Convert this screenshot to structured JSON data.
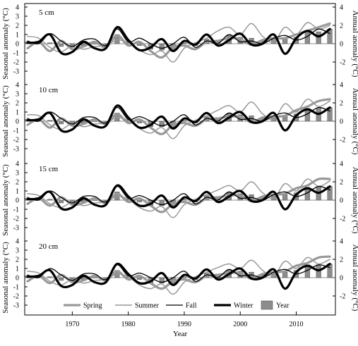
{
  "chart_data": [
    {
      "type": "line",
      "panel_label": "5 cm",
      "ylabel_left": "Seasonal anomaly (°C)",
      "ylabel_right": "Annual anomaly (°C)",
      "ylim_left": [
        -4,
        4
      ],
      "ylim_right": [
        -4,
        4
      ],
      "left_ticks": [
        "4",
        "3",
        "2",
        "1",
        "0",
        "-1",
        "-2",
        "-3"
      ],
      "right_ticks": [
        "4",
        "2",
        "0",
        "-2"
      ],
      "x": [
        1962,
        1964,
        1966,
        1968,
        1970,
        1972,
        1974,
        1976,
        1978,
        1980,
        1982,
        1984,
        1986,
        1988,
        1990,
        1992,
        1994,
        1996,
        1998,
        2000,
        2002,
        2004,
        2006,
        2008,
        2010,
        2012,
        2014,
        2016
      ],
      "series": [
        {
          "name": "Spring",
          "style": "thick-gray",
          "values": [
            -0.5,
            0.2,
            -0.8,
            0.3,
            -0.6,
            -0.3,
            0.2,
            -0.4,
            0.9,
            -0.2,
            0.2,
            -0.8,
            -1.5,
            -0.4,
            -0.2,
            -0.6,
            0.2,
            0.3,
            0.6,
            0.5,
            -0.1,
            0.4,
            0.6,
            0.6,
            1.0,
            1.4,
            1.8,
            2.2
          ]
        },
        {
          "name": "Summer",
          "style": "thin-gray",
          "values": [
            0.8,
            0.6,
            -0.4,
            -0.9,
            -0.2,
            -0.6,
            -0.3,
            -0.2,
            0.4,
            0.1,
            -0.7,
            -1.2,
            -0.8,
            -2.0,
            -0.5,
            0.1,
            0.6,
            1.4,
            1.8,
            1.0,
            2.2,
            0.8,
            0.2,
            1.8,
            1.0,
            2.3,
            1.6,
            2.0
          ]
        },
        {
          "name": "Fall",
          "style": "thin-black",
          "values": [
            0.3,
            0.0,
            1.1,
            0.3,
            -0.3,
            0.4,
            0.5,
            -0.2,
            1.6,
            0.2,
            0.6,
            0.0,
            -0.5,
            0.0,
            0.7,
            -0.4,
            0.3,
            0.0,
            1.0,
            0.2,
            0.3,
            0.0,
            0.6,
            0.9,
            0.4,
            0.8,
            1.6,
            1.1
          ]
        },
        {
          "name": "Winter",
          "style": "thick-black",
          "values": [
            0.1,
            0.2,
            1.0,
            -1.0,
            -0.9,
            0.2,
            -0.5,
            -0.5,
            1.8,
            0.4,
            -0.7,
            -0.4,
            0.5,
            -0.8,
            0.3,
            -0.1,
            1.0,
            -0.2,
            0.4,
            1.1,
            -0.1,
            0.0,
            1.0,
            -1.1,
            0.6,
            1.4,
            0.8,
            1.6
          ]
        }
      ],
      "year_bars": {
        "name": "Year",
        "values": [
          0.2,
          0.1,
          0.1,
          -0.3,
          -0.4,
          -0.2,
          0.0,
          -0.2,
          1.0,
          0.1,
          -0.2,
          -0.6,
          -0.7,
          -0.8,
          0.1,
          -0.2,
          0.5,
          0.4,
          0.9,
          0.7,
          0.6,
          0.3,
          0.6,
          0.6,
          0.7,
          1.4,
          1.3,
          1.6
        ]
      }
    },
    {
      "type": "line",
      "panel_label": "10 cm",
      "ylabel_left": "Seasonal anomaly (°C)",
      "ylabel_right": "Annual anomaly (°C)",
      "ylim_left": [
        -4,
        4
      ],
      "ylim_right": [
        -4,
        4
      ],
      "left_ticks": [
        "4",
        "3",
        "2",
        "1",
        "0",
        "-1",
        "-2",
        "-3"
      ],
      "right_ticks": [
        "4",
        "2",
        "0",
        "-2"
      ],
      "x": [
        1962,
        1964,
        1966,
        1968,
        1970,
        1972,
        1974,
        1976,
        1978,
        1980,
        1982,
        1984,
        1986,
        1988,
        1990,
        1992,
        1994,
        1996,
        1998,
        2000,
        2002,
        2004,
        2006,
        2008,
        2010,
        2012,
        2014,
        2016
      ],
      "series": [
        {
          "name": "Spring",
          "style": "thick-gray",
          "values": [
            -0.4,
            0.2,
            -0.7,
            0.3,
            -0.5,
            -0.3,
            0.2,
            -0.3,
            0.8,
            -0.2,
            0.2,
            -0.7,
            -1.4,
            -0.4,
            -0.2,
            -0.5,
            0.2,
            0.3,
            0.5,
            0.5,
            -0.1,
            0.4,
            0.5,
            0.6,
            1.2,
            1.6,
            2.2,
            2.4
          ]
        },
        {
          "name": "Summer",
          "style": "thin-gray",
          "values": [
            0.7,
            0.6,
            -0.4,
            -0.9,
            -0.2,
            -0.6,
            -0.3,
            -0.2,
            0.4,
            0.1,
            -0.8,
            -1.3,
            -0.7,
            -1.9,
            -0.5,
            0.1,
            0.6,
            1.2,
            1.7,
            1.0,
            2.1,
            0.8,
            0.2,
            1.9,
            1.0,
            2.4,
            1.6,
            2.2
          ]
        },
        {
          "name": "Fall",
          "style": "thin-black",
          "values": [
            0.3,
            0.0,
            1.0,
            0.3,
            -0.3,
            0.4,
            0.4,
            -0.2,
            1.5,
            0.2,
            0.5,
            0.0,
            -0.5,
            0.0,
            0.7,
            -0.4,
            0.3,
            0.0,
            0.9,
            0.2,
            0.3,
            0.0,
            0.6,
            0.9,
            0.4,
            0.8,
            1.5,
            1.1
          ]
        },
        {
          "name": "Winter",
          "style": "thick-black",
          "values": [
            0.1,
            0.2,
            0.9,
            -1.0,
            -0.9,
            0.2,
            -0.5,
            -0.5,
            1.7,
            0.4,
            -0.7,
            -0.4,
            0.5,
            -0.8,
            0.3,
            -0.1,
            0.9,
            -0.2,
            0.4,
            1.0,
            -0.1,
            0.0,
            0.9,
            -1.0,
            0.6,
            1.3,
            0.8,
            1.5
          ]
        }
      ],
      "year_bars": {
        "name": "Year",
        "values": [
          0.2,
          0.1,
          0.1,
          -0.3,
          -0.4,
          -0.2,
          0.0,
          -0.2,
          0.9,
          0.1,
          -0.2,
          -0.6,
          -0.6,
          -0.8,
          0.1,
          -0.2,
          0.5,
          0.4,
          0.8,
          0.7,
          0.6,
          0.3,
          0.6,
          0.6,
          0.8,
          1.4,
          1.4,
          1.5
        ]
      }
    },
    {
      "type": "line",
      "panel_label": "15 cm",
      "ylabel_left": "Seasonal anomaly (°C)",
      "ylabel_right": "Annual anomaly (°C)",
      "ylim_left": [
        -4,
        4
      ],
      "ylim_right": [
        -4,
        4
      ],
      "left_ticks": [
        "4",
        "3",
        "2",
        "1",
        "0",
        "-1",
        "-2",
        "-3"
      ],
      "right_ticks": [
        "4",
        "2",
        "0",
        "-2"
      ],
      "x": [
        1962,
        1964,
        1966,
        1968,
        1970,
        1972,
        1974,
        1976,
        1978,
        1980,
        1982,
        1984,
        1986,
        1988,
        1990,
        1992,
        1994,
        1996,
        1998,
        2000,
        2002,
        2004,
        2006,
        2008,
        2010,
        2012,
        2014,
        2016
      ],
      "series": [
        {
          "name": "Spring",
          "style": "thick-gray",
          "values": [
            -0.4,
            0.2,
            -0.6,
            0.3,
            -0.5,
            -0.3,
            0.2,
            -0.3,
            0.7,
            -0.2,
            0.2,
            -0.6,
            -1.3,
            -0.4,
            -0.2,
            -0.5,
            0.2,
            0.3,
            0.5,
            0.5,
            -0.1,
            0.4,
            0.6,
            0.7,
            1.3,
            1.6,
            2.3,
            2.3
          ]
        },
        {
          "name": "Summer",
          "style": "thin-gray",
          "values": [
            0.7,
            0.5,
            -0.4,
            -0.8,
            -0.2,
            -0.6,
            -0.3,
            -0.2,
            0.4,
            0.1,
            -0.8,
            -1.2,
            -0.7,
            -1.9,
            -0.5,
            0.1,
            0.6,
            1.1,
            1.6,
            1.0,
            2.0,
            0.8,
            0.2,
            1.8,
            1.0,
            2.3,
            1.5,
            2.1
          ]
        },
        {
          "name": "Fall",
          "style": "thin-black",
          "values": [
            0.3,
            0.0,
            1.0,
            0.3,
            -0.3,
            0.4,
            0.4,
            -0.2,
            1.5,
            0.2,
            0.5,
            0.0,
            -0.5,
            0.0,
            0.7,
            -0.4,
            0.3,
            0.0,
            0.9,
            0.2,
            0.3,
            0.0,
            0.6,
            0.9,
            0.4,
            0.8,
            1.5,
            1.1
          ]
        },
        {
          "name": "Winter",
          "style": "thick-black",
          "values": [
            0.1,
            0.2,
            0.9,
            -0.9,
            -0.8,
            0.2,
            -0.5,
            -0.5,
            1.6,
            0.4,
            -0.6,
            -0.4,
            0.5,
            -0.8,
            0.3,
            -0.1,
            0.9,
            -0.2,
            0.4,
            1.0,
            -0.1,
            0.0,
            0.9,
            -1.0,
            0.6,
            1.3,
            0.8,
            1.5
          ]
        }
      ],
      "year_bars": {
        "name": "Year",
        "values": [
          0.2,
          0.1,
          0.1,
          -0.3,
          -0.4,
          -0.2,
          0.0,
          -0.2,
          0.9,
          0.1,
          -0.2,
          -0.6,
          -0.6,
          -0.8,
          0.1,
          -0.2,
          0.5,
          0.4,
          0.8,
          0.7,
          0.6,
          0.3,
          0.6,
          0.6,
          0.8,
          1.4,
          1.4,
          1.5
        ]
      }
    },
    {
      "type": "line",
      "panel_label": "20 cm",
      "ylabel_left": "Seasonal anomaly (°C)",
      "ylabel_right": "Annual anomaly (°C)",
      "ylim_left": [
        -4,
        4
      ],
      "ylim_right": [
        -4,
        4
      ],
      "left_ticks": [
        "4",
        "3",
        "2",
        "1",
        "0",
        "-1",
        "-2",
        "-3"
      ],
      "right_ticks": [
        "4",
        "2",
        "0",
        "-2"
      ],
      "x": [
        1962,
        1964,
        1966,
        1968,
        1970,
        1972,
        1974,
        1976,
        1978,
        1980,
        1982,
        1984,
        1986,
        1988,
        1990,
        1992,
        1994,
        1996,
        1998,
        2000,
        2002,
        2004,
        2006,
        2008,
        2010,
        2012,
        2014,
        2016
      ],
      "series": [
        {
          "name": "Spring",
          "style": "thick-gray",
          "values": [
            -0.4,
            0.2,
            -0.6,
            0.3,
            -0.5,
            -0.3,
            0.2,
            -0.3,
            0.7,
            -0.2,
            0.2,
            -0.6,
            -1.2,
            -0.4,
            -0.2,
            -0.5,
            0.2,
            0.3,
            0.5,
            0.5,
            -0.1,
            0.4,
            0.6,
            0.7,
            1.3,
            1.6,
            2.2,
            2.3
          ]
        },
        {
          "name": "Summer",
          "style": "thin-gray",
          "values": [
            0.7,
            0.5,
            -0.4,
            -0.8,
            -0.2,
            -0.6,
            -0.3,
            -0.2,
            0.4,
            0.1,
            -0.8,
            -1.2,
            -0.7,
            -1.8,
            -0.5,
            0.1,
            0.6,
            1.1,
            1.5,
            1.0,
            1.9,
            0.8,
            0.2,
            1.8,
            1.0,
            2.2,
            1.5,
            2.0
          ]
        },
        {
          "name": "Fall",
          "style": "thin-black",
          "values": [
            0.3,
            0.0,
            1.0,
            0.3,
            -0.3,
            0.4,
            0.4,
            -0.2,
            1.4,
            0.2,
            0.5,
            0.0,
            -0.5,
            0.0,
            0.7,
            -0.4,
            0.3,
            0.0,
            0.9,
            0.2,
            0.3,
            0.0,
            0.6,
            0.9,
            0.4,
            0.8,
            1.4,
            1.1
          ]
        },
        {
          "name": "Winter",
          "style": "thick-black",
          "values": [
            0.1,
            0.2,
            0.8,
            -0.9,
            -0.8,
            0.2,
            -0.5,
            -0.5,
            1.5,
            0.4,
            -0.6,
            -0.4,
            0.5,
            -0.8,
            0.3,
            -0.1,
            0.9,
            -0.2,
            0.4,
            1.0,
            -0.1,
            0.0,
            0.9,
            -1.2,
            0.6,
            1.3,
            0.8,
            1.5
          ]
        }
      ],
      "year_bars": {
        "name": "Year",
        "values": [
          0.2,
          0.1,
          0.1,
          -0.3,
          -0.4,
          -0.2,
          0.0,
          -0.2,
          0.8,
          0.1,
          -0.2,
          -0.6,
          -0.6,
          -0.8,
          0.1,
          -0.2,
          0.5,
          0.4,
          0.8,
          0.7,
          0.6,
          0.3,
          0.6,
          0.6,
          0.8,
          1.4,
          1.4,
          1.5
        ]
      }
    }
  ],
  "x_axis": {
    "label": "Year",
    "ticks": [
      "1970",
      "1980",
      "1990",
      "2000",
      "2010"
    ],
    "tick_values": [
      1970,
      1980,
      1990,
      2000,
      2010
    ],
    "xlim": [
      1961.5,
      2017
    ]
  },
  "legend": {
    "placement": "bottom-center",
    "items": [
      {
        "label": "Spring",
        "style": "thick-gray"
      },
      {
        "label": "Summer",
        "style": "thin-gray"
      },
      {
        "label": "Fall",
        "style": "thin-black"
      },
      {
        "label": "Winter",
        "style": "thick-black"
      },
      {
        "label": "Year",
        "style": "bar"
      }
    ]
  },
  "colors": {
    "gray_line": "#999999",
    "black_line": "#000000",
    "bar_fill": "#8c8c8c",
    "bar_edge": "#555555"
  }
}
